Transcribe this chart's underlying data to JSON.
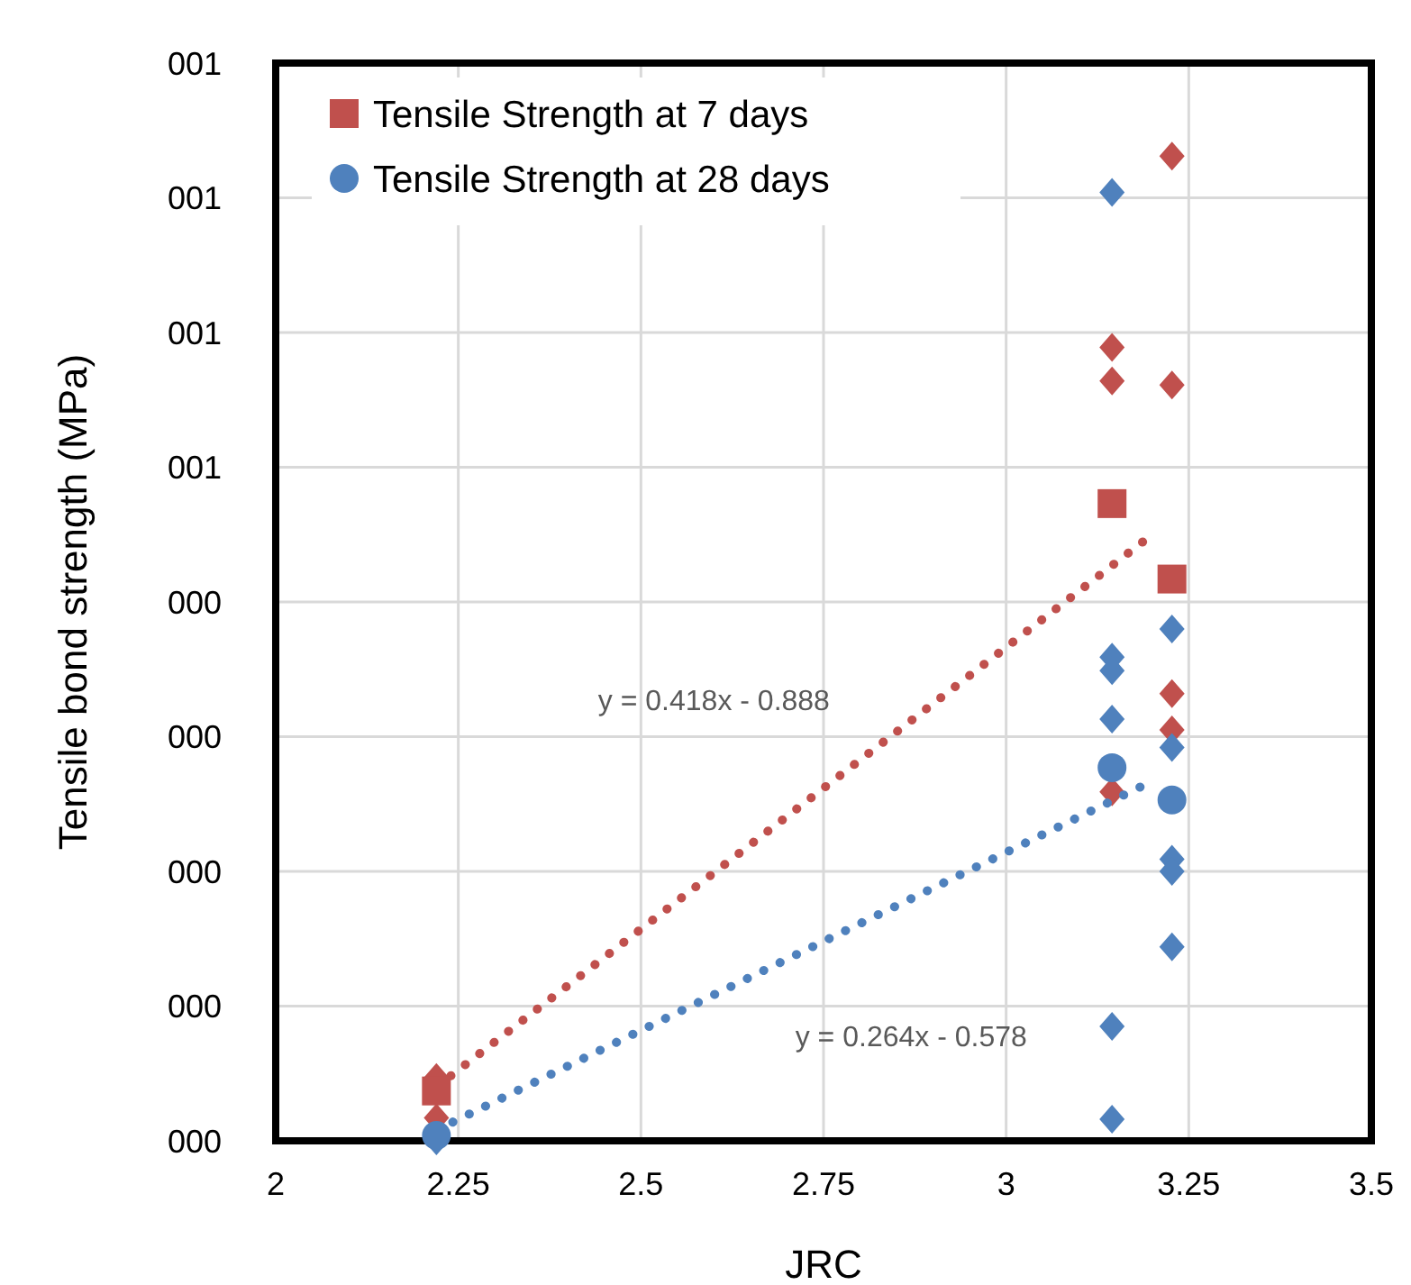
{
  "chart_data": {
    "type": "scatter",
    "xlabel": "JRC",
    "ylabel": "Tensile bond strength (MPa)",
    "xlim": [
      2,
      3.5
    ],
    "xticks": [
      2,
      2.25,
      2.5,
      2.75,
      3,
      3.25,
      3.5
    ],
    "ylim": [
      0,
      0.8
    ],
    "yticks": [
      {
        "value": 0,
        "label": "000"
      },
      {
        "value": 0.1,
        "label": "000"
      },
      {
        "value": 0.2,
        "label": "000"
      },
      {
        "value": 0.3,
        "label": "000"
      },
      {
        "value": 0.4,
        "label": "000"
      },
      {
        "value": 0.5,
        "label": "001"
      },
      {
        "value": 0.6,
        "label": "001"
      },
      {
        "value": 0.7,
        "label": "001"
      },
      {
        "value": 0.8,
        "label": "001"
      }
    ],
    "grid": true,
    "legend": "top left",
    "series": [
      {
        "color": "#c0504d",
        "marker": "diamond",
        "x": [
          2.22,
          2.22,
          3.145,
          3.145,
          3.145,
          3.227,
          3.227,
          3.227,
          3.227
        ],
        "values": [
          0.047,
          0.017,
          0.589,
          0.564,
          0.259,
          0.731,
          0.561,
          0.332,
          0.305
        ]
      },
      {
        "color": "#4f81bd",
        "marker": "diamond",
        "x": [
          2.22,
          3.145,
          3.145,
          3.145,
          3.145,
          3.145,
          3.145,
          3.227,
          3.227,
          3.227,
          3.227,
          3.227
        ],
        "values": [
          0,
          0.704,
          0.359,
          0.349,
          0.313,
          0.085,
          0.016,
          0.38,
          0.292,
          0.209,
          0.2,
          0.144
        ]
      },
      {
        "type": "line",
        "color": "#c0504d",
        "marker": "none",
        "line_style": "dotted",
        "x": [
          2.22,
          3.2
        ],
        "values": [
          0.04,
          0.45
        ]
      },
      {
        "type": "line",
        "color": "#4f81bd",
        "marker": "none",
        "line_style": "dotted",
        "x": [
          2.22,
          3.2
        ],
        "values": [
          0.008,
          0.267
        ]
      },
      {
        "name": "Tensile Strength at 7 days",
        "color": "#c0504d",
        "marker": "square",
        "x": [
          2.22,
          3.145,
          3.227
        ],
        "values": [
          0.037,
          0.473,
          0.417
        ]
      },
      {
        "name": "Tensile Strength at 28 days",
        "color": "#4f81bd",
        "marker": "circle",
        "x": [
          2.22,
          3.145,
          3.227
        ],
        "values": [
          0.004,
          0.277,
          0.253
        ]
      }
    ],
    "annotations": [
      "y = 0.418x - 0.888",
      "y = 0.264x - 0.578"
    ]
  }
}
